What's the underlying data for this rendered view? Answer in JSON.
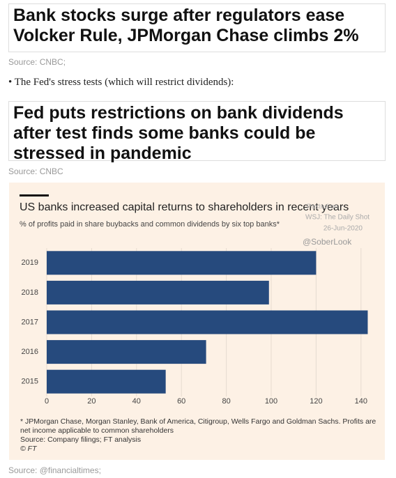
{
  "headline_1": "Bank stocks surge after regulators ease Volcker Rule, JPMorgan Chase climbs 2%",
  "source_1": "Source: CNBC;",
  "bullet": "The Fed's stress tests (which will restrict dividends):",
  "headline_2": "Fed puts restrictions on bank dividends after test finds some banks could be stressed in pandemic",
  "source_2": "Source: CNBC",
  "chart_data": {
    "type": "bar",
    "orientation": "horizontal",
    "title": "US banks increased capital returns to shareholders in recent years",
    "subtitle": "% of profits paid in share buybacks and common dividends by six top banks*",
    "watermark": [
      "Posted on",
      "WSJ: The Daily Shot",
      "26-Jun-2020",
      "@SoberLook"
    ],
    "categories": [
      "2019",
      "2018",
      "2017",
      "2016",
      "2015"
    ],
    "values": [
      120,
      99,
      143,
      71,
      53
    ],
    "color": "#264a7d",
    "xlim": [
      0,
      150
    ],
    "xticks": [
      0,
      20,
      40,
      60,
      80,
      100,
      120,
      140
    ],
    "grid": true,
    "footnote": "* JPMorgan Chase, Morgan Stanley, Bank of America, Citigroup, Wells Fargo and Goldman Sachs. Profits are net income applicable to common shareholders",
    "source": "Source: Company filings; FT analysis",
    "credit": "© FT"
  },
  "source_3": "Source: @financialtimes;"
}
